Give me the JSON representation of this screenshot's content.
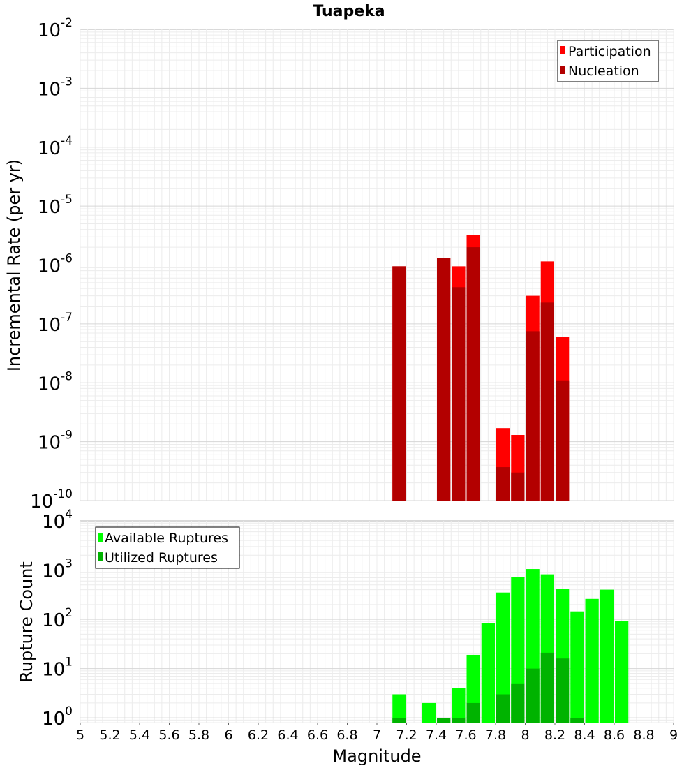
{
  "chart_data": [
    {
      "type": "bar",
      "title": "Tuapeka",
      "xlabel": "",
      "ylabel": "Incremental Rate (per yr)",
      "yscale": "log",
      "xlim": [
        5,
        9
      ],
      "ylim": [
        1e-10,
        0.01
      ],
      "grid": true,
      "legend_position": "top-right",
      "bar_width": 0.1,
      "x": [
        7.15,
        7.45,
        7.55,
        7.65,
        7.85,
        7.95,
        8.05,
        8.15,
        8.25
      ],
      "series": [
        {
          "name": "Participation",
          "color": "#ff0000",
          "values": [
            9.5e-07,
            1.3e-06,
            9.5e-07,
            3.2e-06,
            1.7e-09,
            1.3e-09,
            3e-07,
            1.15e-06,
            6e-08
          ]
        },
        {
          "name": "Nucleation",
          "color": "#b30000",
          "values": [
            9.5e-07,
            1.3e-06,
            4.2e-07,
            2e-06,
            3.7e-10,
            3e-10,
            7.5e-08,
            2.3e-07,
            1.1e-08
          ]
        }
      ]
    },
    {
      "type": "bar",
      "title": "",
      "xlabel": "Magnitude",
      "ylabel": "Rupture Count",
      "yscale": "log",
      "xlim": [
        5,
        9
      ],
      "ylim": [
        0.8,
        10000
      ],
      "grid": true,
      "legend_position": "top-left",
      "bar_width": 0.1,
      "x": [
        7.15,
        7.35,
        7.45,
        7.55,
        7.65,
        7.75,
        7.85,
        7.95,
        8.05,
        8.15,
        8.25,
        8.35,
        8.45,
        8.55,
        8.65
      ],
      "series": [
        {
          "name": "Available Ruptures",
          "color": "#00ff00",
          "values": [
            3,
            2,
            1,
            4,
            19,
            85,
            350,
            720,
            1050,
            820,
            420,
            145,
            260,
            400,
            92
          ]
        },
        {
          "name": "Utilized Ruptures",
          "color": "#00b300",
          "values": [
            1,
            null,
            1,
            1,
            2,
            null,
            3,
            5,
            10,
            21,
            16,
            1,
            null,
            null,
            null
          ]
        }
      ],
      "xticks": [
        "5",
        "5.2",
        "5.4",
        "5.6",
        "5.8",
        "6",
        "6.2",
        "6.4",
        "6.6",
        "6.8",
        "7",
        "7.2",
        "7.4",
        "7.6",
        "7.8",
        "8",
        "8.2",
        "8.4",
        "8.6",
        "8.8",
        "9"
      ]
    }
  ]
}
